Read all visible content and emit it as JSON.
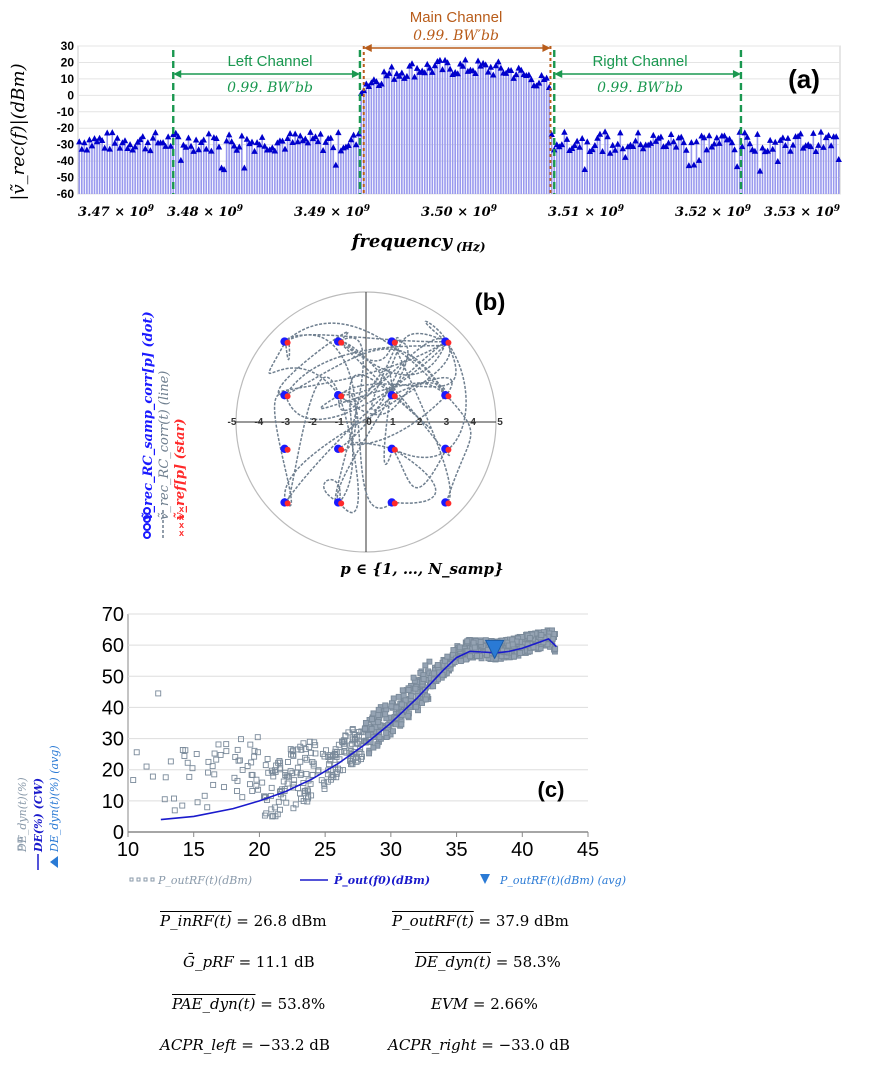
{
  "panel_a": {
    "label": "(a)",
    "ylabel": "|ṽ_rec(f)|(dBm)",
    "xlabel": "frequency",
    "xlabel_unit": "(Hz)",
    "left_channel": {
      "title": "Left Channel",
      "bw": "0.99. BW′bb"
    },
    "main_channel": {
      "title": "Main Channel",
      "bw": "0.99. BW′bb"
    },
    "right_channel": {
      "title": "Right Channel",
      "bw": "0.99. BW′bb"
    },
    "colors": {
      "bars": "#9999ee",
      "markers": "#0000cc",
      "channel_line": "#1a9850",
      "main_line": "#b85c1a"
    }
  },
  "panel_b": {
    "label": "(b)",
    "legend": [
      {
        "marker": "oooo",
        "text": "ṽ_rec_RC_samp_corr[p] (dot)",
        "color": "#1a1aff"
      },
      {
        "marker": "----",
        "text": "ṽ_rec_RC_corr(t) (line)",
        "color": "#6f7f8f"
      },
      {
        "marker": "xxxx",
        "text": "ṽ_ref[p] (star)",
        "color": "#ff2a2a"
      }
    ],
    "xlabel": "p ∈ {1, …, N_samp}",
    "colors": {
      "trace": "#6f7f8f",
      "dot": "#1a1aff",
      "star": "#ff2a2a"
    }
  },
  "panel_c": {
    "label": "(c)",
    "legend_left": [
      {
        "text": "DE_dyn(t)(%)"
      },
      {
        "text": "DE(%) (CW)"
      },
      {
        "text": "DE_dyn(t)(%) (avg)"
      }
    ],
    "legend_bottom": [
      {
        "text": "P_outRF(t)(dBm)"
      },
      {
        "text": "P̄_out(f0)(dBm)"
      },
      {
        "text": "P_outRF(t)(dBm) (avg)"
      }
    ],
    "colors": {
      "squares": "#7a8a9a",
      "cw_line": "#1a1acc",
      "marker": "#2a7ad5"
    }
  },
  "chart_data": [
    {
      "type": "bar",
      "x_ticks": [
        "3.47 × 10^9",
        "3.48 × 10^9",
        "3.49 × 10^9",
        "3.50 × 10^9",
        "3.51 × 10^9",
        "3.52 × 10^9",
        "3.53 × 10^9"
      ],
      "x_tick_values": [
        3470000000.0,
        3480000000.0,
        3490000000.0,
        3500000000.0,
        3510000000.0,
        3520000000.0,
        3530000000.0
      ],
      "xlim": [
        3470000000.0,
        3530000000.0
      ],
      "ylim": [
        -60,
        30
      ],
      "y_ticks": [
        30,
        20,
        10,
        0,
        -10,
        -20,
        -30,
        -40,
        -50,
        -60
      ],
      "channel_edges_hz": {
        "left": [
          3477500000.0,
          3492200000.0
        ],
        "main": [
          3492500000.0,
          3507200000.0
        ],
        "right": [
          3507500000.0,
          3522200000.0
        ]
      },
      "bands": [
        {
          "name": "out-of-band-left",
          "from": 3470000000.0,
          "to": 3492200000.0,
          "level_dbm": -28,
          "spread": 6
        },
        {
          "name": "main",
          "from": 3492200000.0,
          "to": 3507200000.0,
          "level_dbm": 12,
          "spread": 5
        },
        {
          "name": "out-of-band-right",
          "from": 3507200000.0,
          "to": 3530000000.0,
          "level_dbm": -28,
          "spread": 6
        }
      ]
    },
    {
      "type": "scatter",
      "x_ticks": [
        "-5",
        "-4",
        "-3",
        "-2",
        "-1",
        "0",
        "1",
        "2",
        "3",
        "4",
        "5"
      ],
      "xlim": [
        -5,
        5
      ],
      "constellation": {
        "x": [
          -3,
          -1,
          1,
          3
        ],
        "y": [
          3,
          1,
          -1,
          -3
        ]
      }
    },
    {
      "type": "scatter",
      "x_ticks": [
        "10",
        "15",
        "20",
        "25",
        "30",
        "35",
        "40",
        "45"
      ],
      "y_ticks": [
        "0",
        "10",
        "20",
        "30",
        "40",
        "50",
        "60",
        "70"
      ],
      "xlim": [
        10,
        45
      ],
      "ylim": [
        0,
        70
      ],
      "cw_curve": {
        "x": [
          12.5,
          15,
          18,
          20,
          22,
          24,
          26,
          28,
          30,
          32,
          34,
          35,
          36,
          37,
          38,
          39,
          40,
          41,
          42,
          42.6
        ],
        "y": [
          4,
          5,
          7.5,
          10,
          13,
          17,
          22,
          28,
          35,
          43,
          52,
          56,
          58,
          57.8,
          57.5,
          58,
          59,
          60.5,
          62,
          59.5
        ]
      },
      "average_point": {
        "x": 37.9,
        "y": 58.3
      }
    }
  ],
  "metrics": {
    "pin": {
      "lhs": "P_inRF(t)",
      "rhs": " = 26.8  dBm"
    },
    "pout": {
      "lhs": "P_outRF(t)",
      "rhs": " = 37.9  dBm"
    },
    "gain": {
      "lhs": "Ḡ_pRF",
      "rhs": " = 11.1  dB"
    },
    "de": {
      "lhs": "DE_dyn(t)",
      "rhs": " = 58.3%"
    },
    "pae": {
      "lhs": "PAE_dyn(t)",
      "rhs": " = 53.8%"
    },
    "evm": {
      "lhs": "EVM",
      "rhs": " = 2.66%"
    },
    "acpr_left": {
      "lhs": "ACPR_left",
      "rhs": " = −33.2  dB"
    },
    "acpr_right": {
      "lhs": "ACPR_right",
      "rhs": " = −33.0  dB"
    }
  }
}
